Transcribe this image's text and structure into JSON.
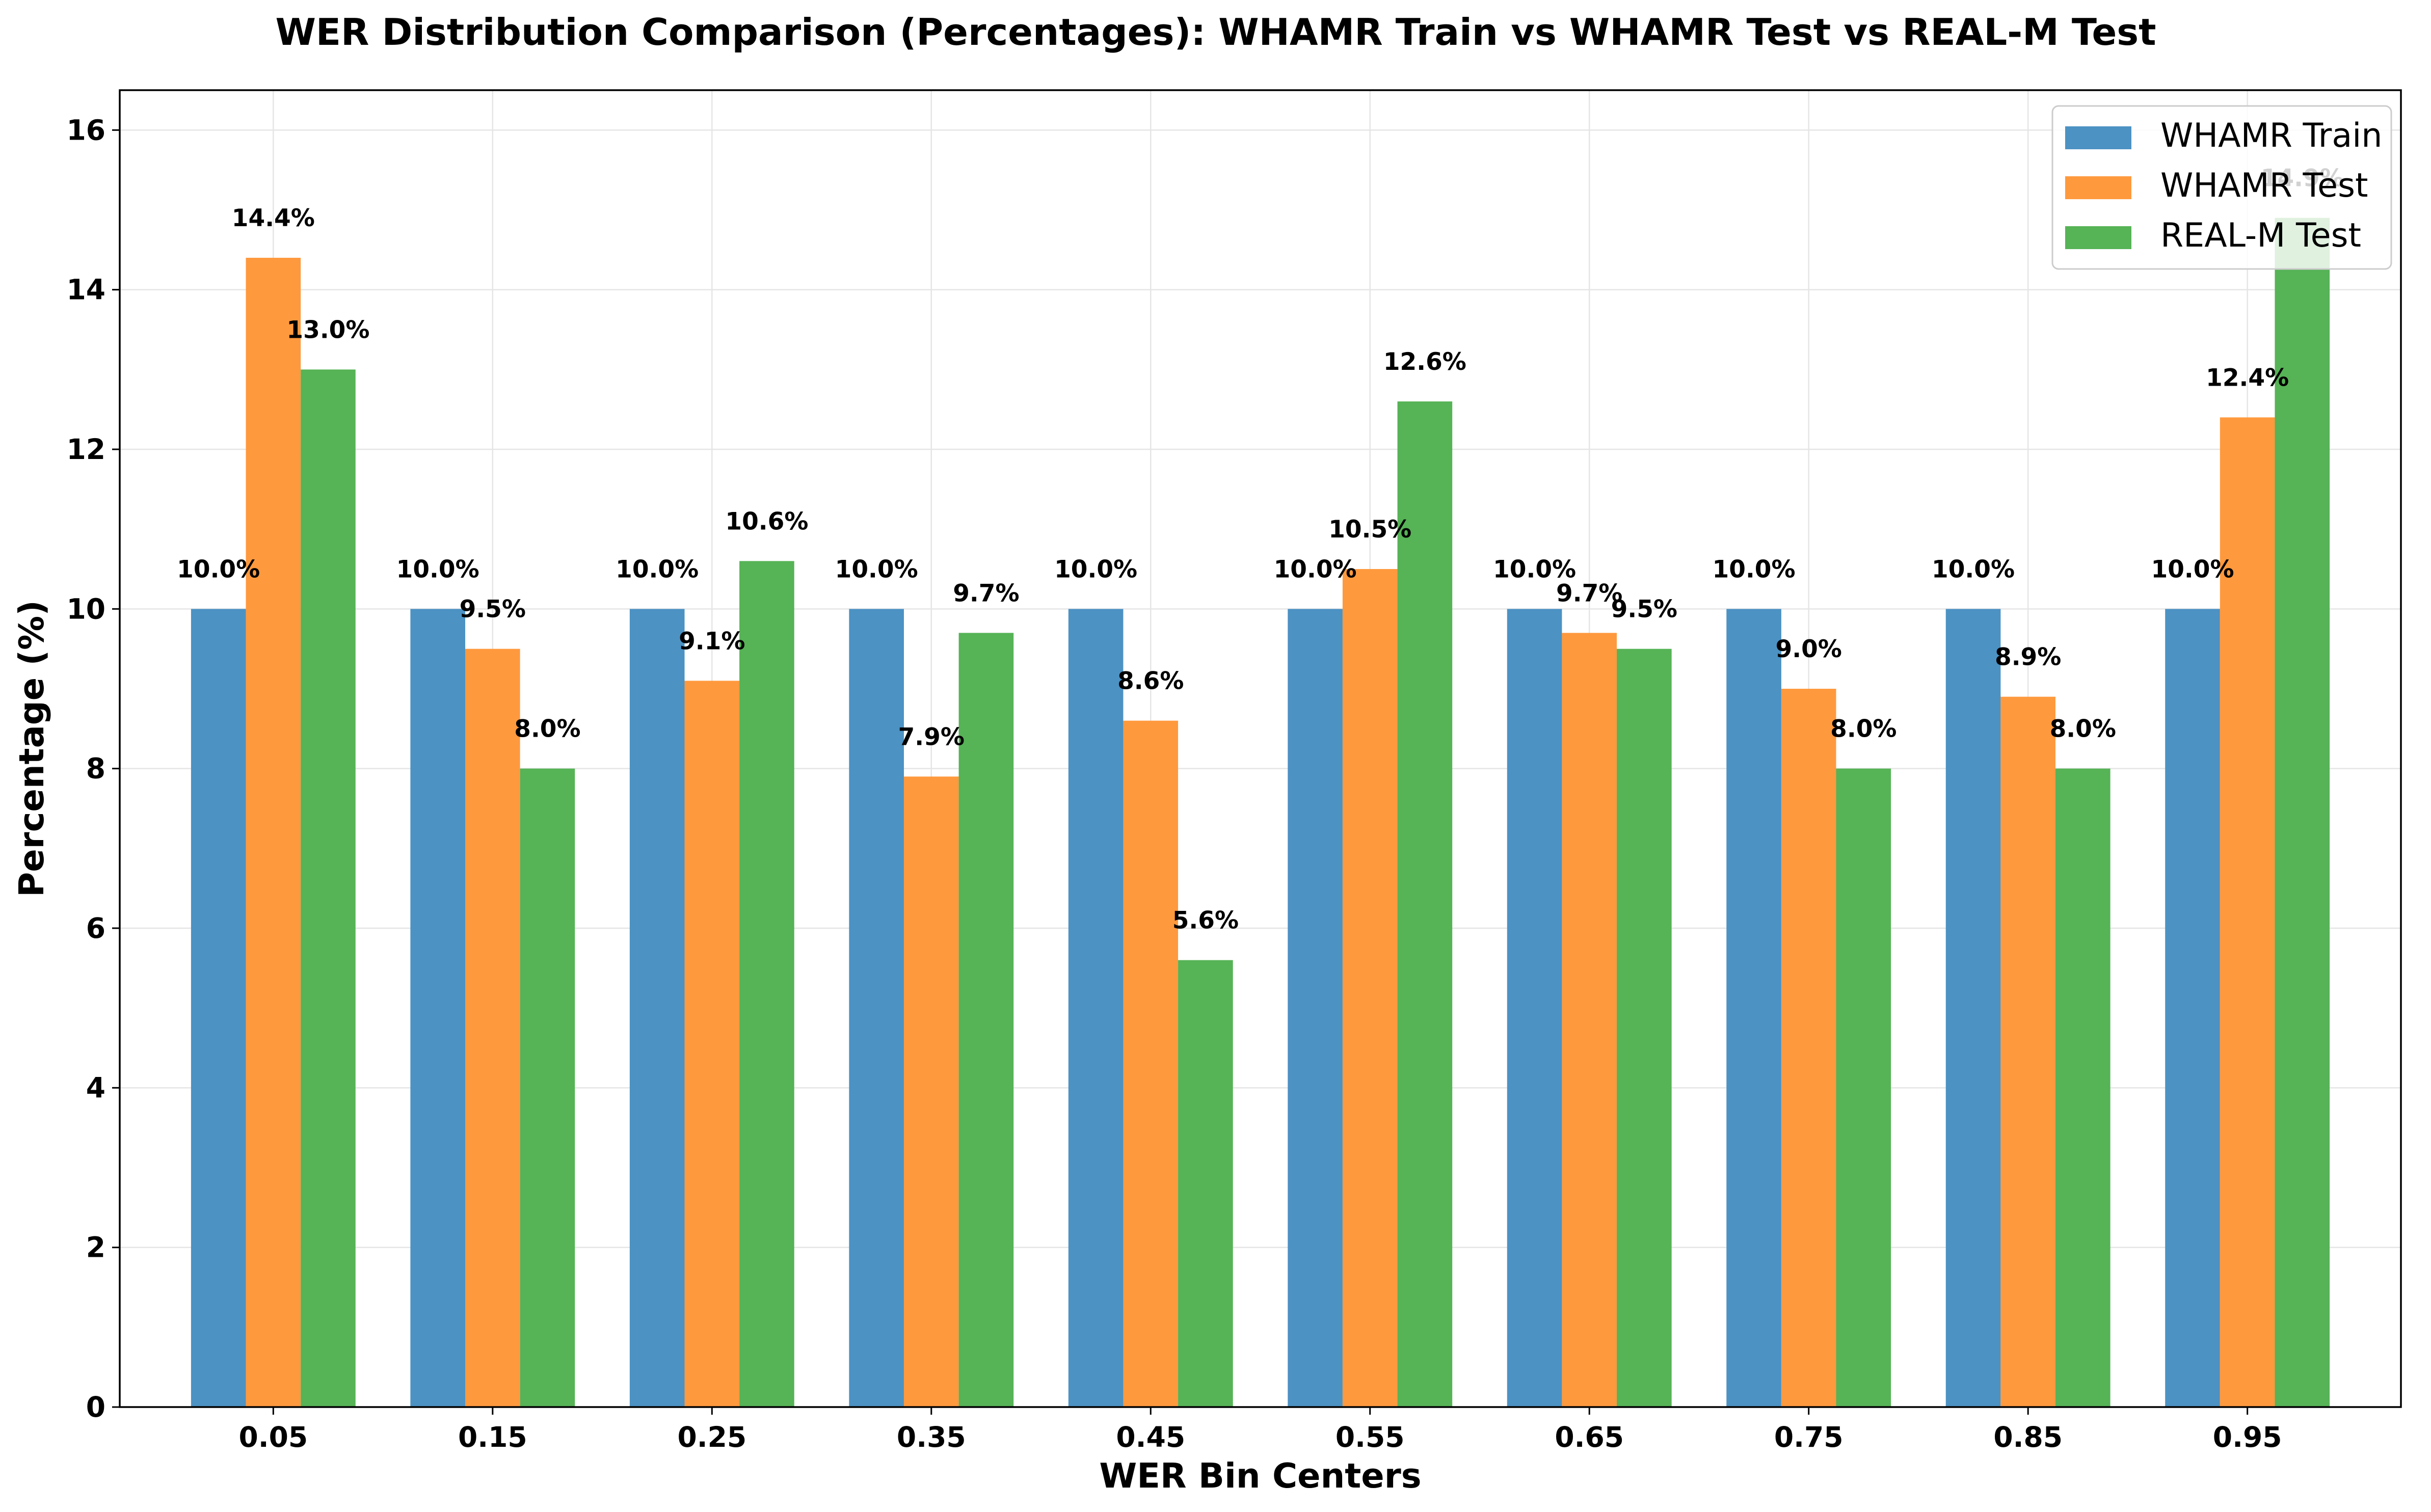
{
  "chart_data": {
    "type": "bar",
    "title": "WER Distribution Comparison (Percentages): WHAMR Train vs WHAMR Test vs REAL-M Test",
    "xlabel": "WER Bin Centers",
    "ylabel": "Percentage (%)",
    "categories": [
      "0.05",
      "0.15",
      "0.25",
      "0.35",
      "0.45",
      "0.55",
      "0.65",
      "0.75",
      "0.85",
      "0.95"
    ],
    "ylim": [
      0,
      16.5
    ],
    "yticks": [
      0,
      2,
      4,
      6,
      8,
      10,
      12,
      14,
      16
    ],
    "grid": true,
    "legend_position": "top-right",
    "series": [
      {
        "name": "WHAMR Train",
        "color": "#4c92c3",
        "values": [
          10.0,
          10.0,
          10.0,
          10.0,
          10.0,
          10.0,
          10.0,
          10.0,
          10.0,
          10.0
        ],
        "labels": [
          "10.0%",
          "10.0%",
          "10.0%",
          "10.0%",
          "10.0%",
          "10.0%",
          "10.0%",
          "10.0%",
          "10.0%",
          "10.0%"
        ]
      },
      {
        "name": "WHAMR Test",
        "color": "#ff993e",
        "values": [
          14.4,
          9.5,
          9.1,
          7.9,
          8.6,
          10.5,
          9.7,
          9.0,
          8.9,
          12.4
        ],
        "labels": [
          "14.4%",
          "9.5%",
          "9.1%",
          "7.9%",
          "8.6%",
          "10.5%",
          "9.7%",
          "9.0%",
          "8.9%",
          "12.4%"
        ]
      },
      {
        "name": "REAL-M Test",
        "color": "#56b356",
        "values": [
          13.0,
          8.0,
          10.6,
          9.7,
          5.6,
          12.6,
          9.5,
          8.0,
          8.0,
          14.9
        ],
        "labels": [
          "13.0%",
          "8.0%",
          "10.6%",
          "9.7%",
          "5.6%",
          "12.6%",
          "9.5%",
          "8.0%",
          "8.0%",
          "14.9%"
        ]
      }
    ]
  }
}
